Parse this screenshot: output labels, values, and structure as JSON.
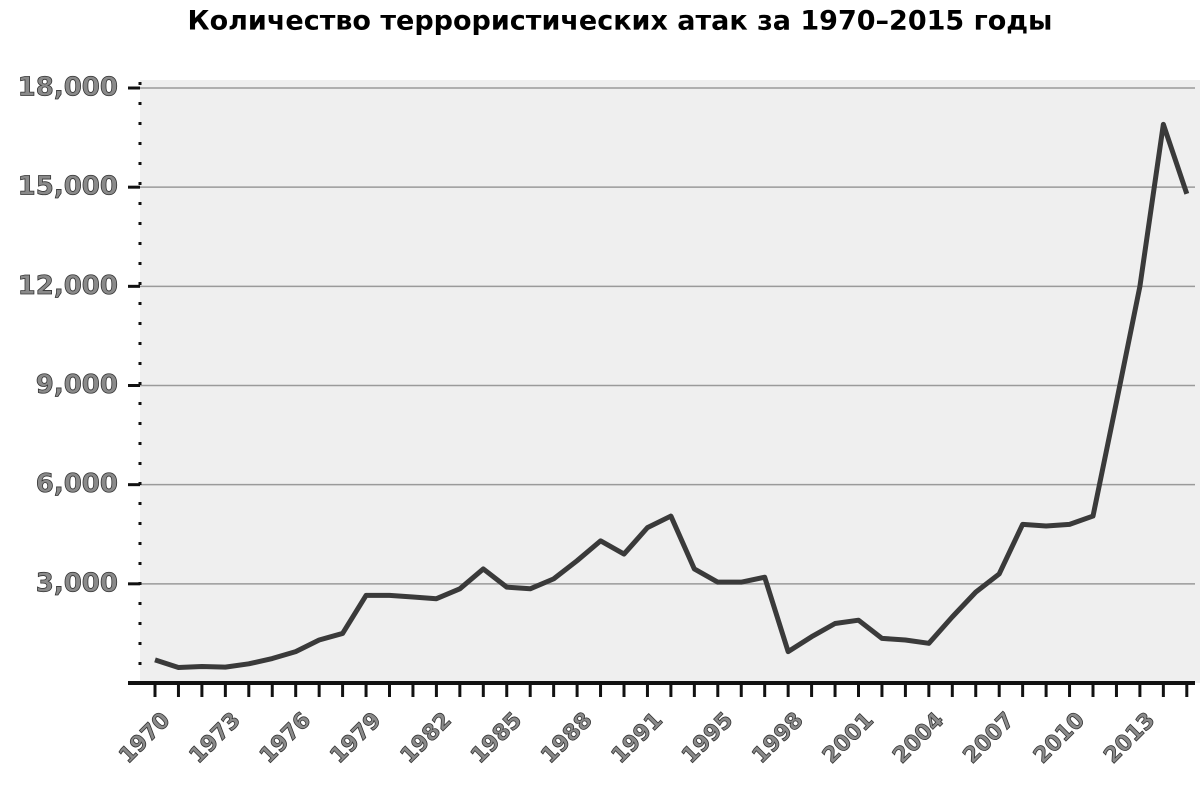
{
  "chart_data": {
    "type": "line",
    "title": "Количество террористических атак за 1970–2015 годы",
    "categories": [
      "1970",
      null,
      null,
      "1973",
      null,
      null,
      "1976",
      null,
      null,
      "1979",
      null,
      null,
      "1982",
      null,
      null,
      "1985",
      null,
      null,
      "1988",
      null,
      null,
      "1991",
      null,
      null,
      "1995",
      null,
      null,
      "1998",
      null,
      null,
      "2001",
      null,
      null,
      "2004",
      null,
      null,
      "2007",
      null,
      null,
      "2010",
      null,
      null,
      "2013",
      null,
      null
    ],
    "values": [
      700,
      470,
      500,
      480,
      580,
      740,
      950,
      1300,
      1500,
      2650,
      2650,
      2600,
      2550,
      2850,
      3450,
      2900,
      2850,
      3150,
      3700,
      4300,
      3900,
      4700,
      5050,
      3450,
      3050,
      3050,
      3200,
      950,
      1400,
      1800,
      1900,
      1350,
      1300,
      1200,
      2000,
      2750,
      3300,
      4800,
      4750,
      4800,
      5050,
      8500,
      12000,
      16900,
      14800
    ],
    "color": "#3a3a3a",
    "ylim": [
      0,
      18000
    ],
    "yticks": [
      {
        "value": 3000,
        "label": "3,000"
      },
      {
        "value": 6000,
        "label": "6,000"
      },
      {
        "value": 9000,
        "label": "9,000"
      },
      {
        "value": 12000,
        "label": "12,000"
      },
      {
        "value": 15000,
        "label": "15,000"
      },
      {
        "value": 18000,
        "label": "18,000"
      }
    ],
    "grid": true
  }
}
